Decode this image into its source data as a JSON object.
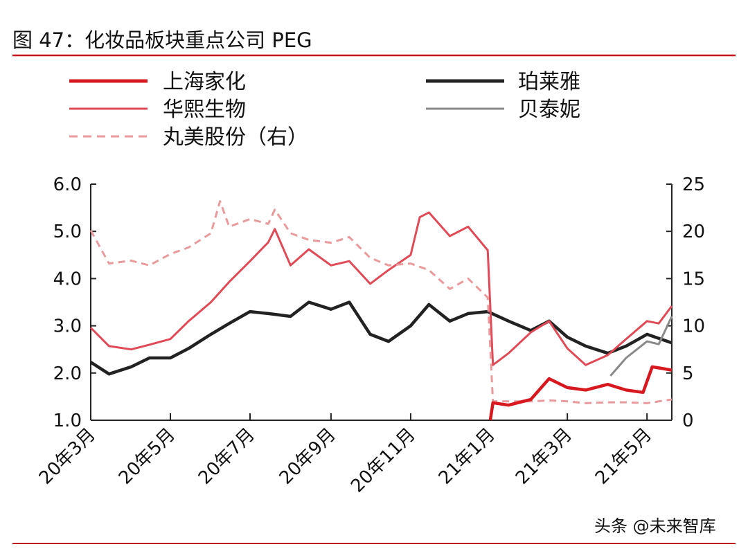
{
  "title": "图 47：化妆品板块重点公司 PEG",
  "watermark": "头条 @未来智库",
  "colors": {
    "accent_rule": "#c0161c"
  },
  "chart_data": {
    "type": "line",
    "title": "图 47：化妆品板块重点公司 PEG",
    "xlabel": "",
    "ylabel": "",
    "x_ticks": [
      "20年3月",
      "20年5月",
      "20年7月",
      "20年9月",
      "20年11月",
      "21年1月",
      "21年3月",
      "21年5月"
    ],
    "x_tick_dates": [
      "2020-03-01",
      "2020-05-01",
      "2020-07-01",
      "2020-09-01",
      "2020-11-01",
      "2021-01-01",
      "2021-03-01",
      "2021-05-01"
    ],
    "xlim": [
      "2020-03-01",
      "2021-05-20"
    ],
    "y_left": {
      "lim": [
        1.0,
        6.0
      ],
      "ticks": [
        "1.0",
        "2.0",
        "3.0",
        "4.0",
        "5.0",
        "6.0"
      ]
    },
    "y_right": {
      "lim": [
        0,
        25
      ],
      "ticks": [
        "0",
        "5",
        "10",
        "15",
        "20",
        "25"
      ]
    },
    "grid": false,
    "legend_position": "top",
    "series": [
      {
        "name": "上海家化",
        "axis": "left",
        "color": "#d7191f",
        "style": "solid-thick",
        "points": [
          [
            "2021-01-01",
            1.0
          ],
          [
            "2021-01-03",
            1.37
          ],
          [
            "2021-01-15",
            1.32
          ],
          [
            "2021-02-01",
            1.44
          ],
          [
            "2021-02-15",
            1.88
          ],
          [
            "2021-03-01",
            1.69
          ],
          [
            "2021-03-15",
            1.64
          ],
          [
            "2021-04-01",
            1.76
          ],
          [
            "2021-04-15",
            1.64
          ],
          [
            "2021-04-28",
            1.59
          ],
          [
            "2021-05-05",
            2.13
          ],
          [
            "2021-05-12",
            2.1
          ],
          [
            "2021-05-20",
            2.06
          ]
        ]
      },
      {
        "name": "珀莱雅",
        "axis": "left",
        "color": "#222222",
        "style": "solid-thick",
        "points": [
          [
            "2020-03-01",
            2.23
          ],
          [
            "2020-03-15",
            1.98
          ],
          [
            "2020-04-01",
            2.13
          ],
          [
            "2020-04-15",
            2.32
          ],
          [
            "2020-05-01",
            2.32
          ],
          [
            "2020-05-15",
            2.52
          ],
          [
            "2020-06-01",
            2.82
          ],
          [
            "2020-06-15",
            3.05
          ],
          [
            "2020-07-01",
            3.3
          ],
          [
            "2020-07-15",
            3.26
          ],
          [
            "2020-08-01",
            3.2
          ],
          [
            "2020-08-15",
            3.5
          ],
          [
            "2020-09-01",
            3.35
          ],
          [
            "2020-09-15",
            3.5
          ],
          [
            "2020-10-01",
            2.82
          ],
          [
            "2020-10-15",
            2.67
          ],
          [
            "2020-11-01",
            3.0
          ],
          [
            "2020-11-15",
            3.45
          ],
          [
            "2020-12-01",
            3.1
          ],
          [
            "2020-12-15",
            3.26
          ],
          [
            "2020-12-30",
            3.3
          ],
          [
            "2021-01-15",
            3.1
          ],
          [
            "2021-02-01",
            2.9
          ],
          [
            "2021-02-15",
            3.1
          ],
          [
            "2021-03-01",
            2.76
          ],
          [
            "2021-03-15",
            2.57
          ],
          [
            "2021-04-01",
            2.42
          ],
          [
            "2021-04-15",
            2.57
          ],
          [
            "2021-05-01",
            2.82
          ],
          [
            "2021-05-20",
            2.64
          ]
        ]
      },
      {
        "name": "华熙生物",
        "axis": "left",
        "color": "#e04a57",
        "style": "solid",
        "points": [
          [
            "2020-03-01",
            2.96
          ],
          [
            "2020-03-15",
            2.57
          ],
          [
            "2020-04-01",
            2.5
          ],
          [
            "2020-04-15",
            2.6
          ],
          [
            "2020-05-01",
            2.72
          ],
          [
            "2020-05-15",
            3.1
          ],
          [
            "2020-06-01",
            3.5
          ],
          [
            "2020-06-15",
            3.93
          ],
          [
            "2020-07-01",
            4.37
          ],
          [
            "2020-07-15",
            4.77
          ],
          [
            "2020-07-20",
            5.05
          ],
          [
            "2020-08-01",
            4.28
          ],
          [
            "2020-08-15",
            4.62
          ],
          [
            "2020-09-01",
            4.28
          ],
          [
            "2020-09-15",
            4.37
          ],
          [
            "2020-10-01",
            3.89
          ],
          [
            "2020-10-15",
            4.18
          ],
          [
            "2020-11-01",
            4.5
          ],
          [
            "2020-11-08",
            5.3
          ],
          [
            "2020-11-15",
            5.4
          ],
          [
            "2020-12-01",
            4.9
          ],
          [
            "2020-12-15",
            5.1
          ],
          [
            "2020-12-30",
            4.6
          ],
          [
            "2021-01-03",
            2.17
          ],
          [
            "2021-01-15",
            2.42
          ],
          [
            "2021-02-01",
            2.86
          ],
          [
            "2021-02-15",
            3.1
          ],
          [
            "2021-03-01",
            2.52
          ],
          [
            "2021-03-15",
            2.17
          ],
          [
            "2021-04-01",
            2.38
          ],
          [
            "2021-04-15",
            2.72
          ],
          [
            "2021-05-01",
            3.1
          ],
          [
            "2021-05-10",
            3.05
          ],
          [
            "2021-05-20",
            3.42
          ]
        ]
      },
      {
        "name": "贝泰妮",
        "axis": "left",
        "color": "#8a8a8a",
        "style": "solid",
        "points": [
          [
            "2021-04-03",
            1.94
          ],
          [
            "2021-04-15",
            2.32
          ],
          [
            "2021-05-01",
            2.67
          ],
          [
            "2021-05-10",
            2.61
          ],
          [
            "2021-05-20",
            3.2
          ]
        ]
      },
      {
        "name": "丸美股份（右）",
        "axis": "right",
        "color": "#e89a9c",
        "style": "dashed",
        "points": [
          [
            "2020-03-01",
            20.1
          ],
          [
            "2020-03-15",
            16.6
          ],
          [
            "2020-04-01",
            16.9
          ],
          [
            "2020-04-15",
            16.4
          ],
          [
            "2020-05-01",
            17.6
          ],
          [
            "2020-05-15",
            18.3
          ],
          [
            "2020-06-01",
            19.8
          ],
          [
            "2020-06-08",
            23.2
          ],
          [
            "2020-06-15",
            20.5
          ],
          [
            "2020-07-01",
            21.3
          ],
          [
            "2020-07-15",
            20.8
          ],
          [
            "2020-07-20",
            22.3
          ],
          [
            "2020-08-01",
            19.8
          ],
          [
            "2020-08-15",
            19.1
          ],
          [
            "2020-09-01",
            18.8
          ],
          [
            "2020-09-15",
            19.4
          ],
          [
            "2020-10-01",
            17.2
          ],
          [
            "2020-10-15",
            16.4
          ],
          [
            "2020-11-01",
            16.6
          ],
          [
            "2020-11-15",
            15.9
          ],
          [
            "2020-12-01",
            13.9
          ],
          [
            "2020-12-15",
            15.0
          ],
          [
            "2020-12-30",
            13.0
          ],
          [
            "2021-01-03",
            2.0
          ],
          [
            "2021-02-01",
            2.0
          ],
          [
            "2021-02-15",
            2.1
          ],
          [
            "2021-03-01",
            2.0
          ],
          [
            "2021-03-15",
            1.8
          ],
          [
            "2021-04-01",
            1.9
          ],
          [
            "2021-04-15",
            1.9
          ],
          [
            "2021-05-01",
            1.8
          ],
          [
            "2021-05-20",
            2.2
          ]
        ]
      }
    ]
  }
}
